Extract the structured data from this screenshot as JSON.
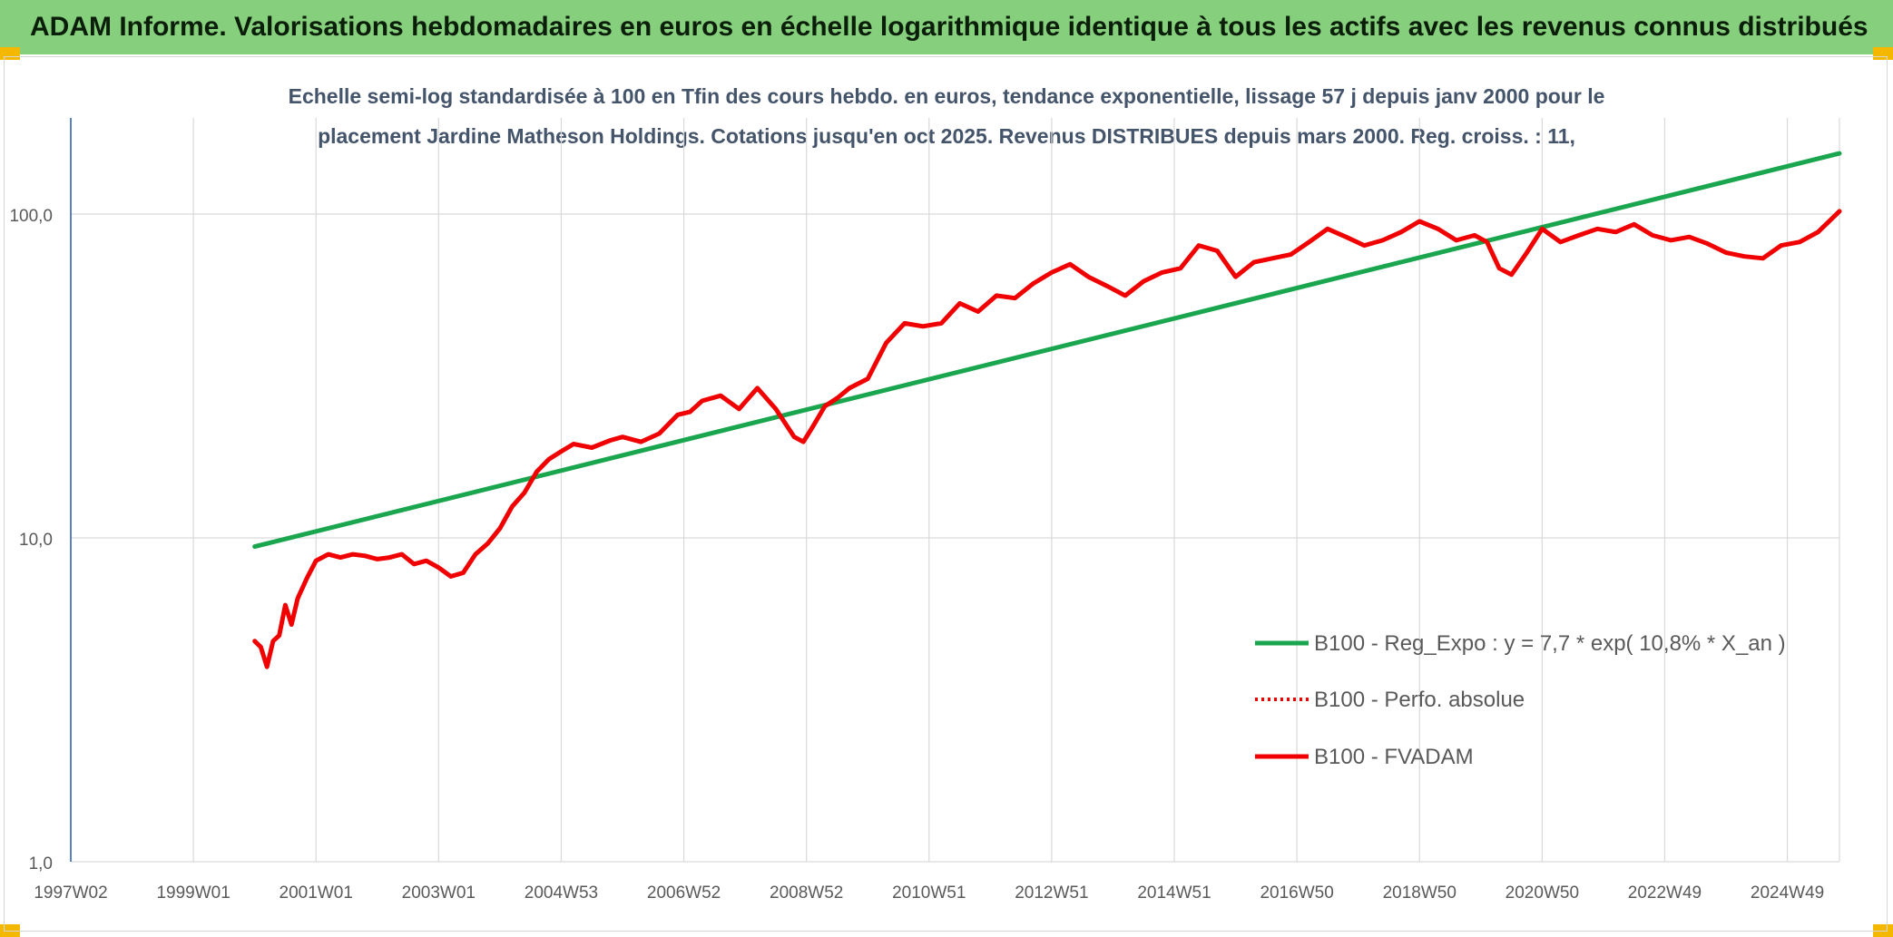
{
  "banner": {
    "text": "ADAM Informe. Valorisations hebdomadaires en euros en échelle logarithmique identique à tous les actifs avec les revenus connus distribués"
  },
  "colors": {
    "banner_bg": "#86cf7c",
    "corner_marker": "#f5b800",
    "regression_line": "#1aa64e",
    "series_line": "#f00000",
    "title_text": "#44546a",
    "axis_text": "#595959",
    "grid": "#d9d9d9",
    "y_axis_line": "#2e64ad"
  },
  "chart_data": {
    "type": "line",
    "title_lines": [
      "Echelle semi-log standardisée à 100 en Tfin des cours hebdo. en euros, tendance exponentielle, lissage 57 j depuis janv 2000 pour le",
      "placement Jardine Matheson Holdings. Cotations jusqu'en oct 2025. Revenus DISTRIBUES depuis mars 2000. Reg. croiss. : 11,"
    ],
    "y_scale": "log",
    "ylim": [
      1,
      100
    ],
    "yticks": [
      1,
      10,
      100
    ],
    "ytick_labels": [
      "1,0",
      "10,0",
      "100,0"
    ],
    "x_range": [
      1997.0,
      2025.85
    ],
    "xticks": [
      {
        "label": "1997W02",
        "x": 1997.0
      },
      {
        "label": "1999W01",
        "x": 1999.0
      },
      {
        "label": "2001W01",
        "x": 2001.0
      },
      {
        "label": "2003W01",
        "x": 2003.0
      },
      {
        "label": "2004W53",
        "x": 2005.0
      },
      {
        "label": "2006W52",
        "x": 2007.0
      },
      {
        "label": "2008W52",
        "x": 2009.0
      },
      {
        "label": "2010W51",
        "x": 2011.0
      },
      {
        "label": "2012W51",
        "x": 2013.0
      },
      {
        "label": "2014W51",
        "x": 2015.0
      },
      {
        "label": "2016W50",
        "x": 2017.0
      },
      {
        "label": "2018W50",
        "x": 2019.0
      },
      {
        "label": "2020W50",
        "x": 2021.0
      },
      {
        "label": "2022W49",
        "x": 2023.0
      },
      {
        "label": "2024W49",
        "x": 2025.0
      }
    ],
    "grid": true,
    "legend_position": "bottom-right",
    "series": [
      {
        "name": "B100 - Reg_Expo : y = 7,7 * exp( 10,8% *  X_an )",
        "style": "solid",
        "color": "#1aa64e",
        "x": [
          2000.0,
          2025.85
        ],
        "y": [
          9.4,
          154
        ]
      },
      {
        "name": "B100 - Perfo. absolue",
        "style": "dotted",
        "color": "#f00000",
        "x": [],
        "y": []
      },
      {
        "name": "B100 - FVADAM",
        "style": "solid",
        "color": "#f00000",
        "x": [
          2000.0,
          2000.1,
          2000.2,
          2000.3,
          2000.4,
          2000.5,
          2000.6,
          2000.7,
          2000.85,
          2001.0,
          2001.2,
          2001.4,
          2001.6,
          2001.8,
          2002.0,
          2002.2,
          2002.4,
          2002.6,
          2002.8,
          2003.0,
          2003.2,
          2003.4,
          2003.6,
          2003.8,
          2004.0,
          2004.2,
          2004.4,
          2004.6,
          2004.8,
          2005.0,
          2005.2,
          2005.5,
          2005.8,
          2006.0,
          2006.3,
          2006.6,
          2006.9,
          2007.1,
          2007.3,
          2007.6,
          2007.9,
          2008.2,
          2008.5,
          2008.8,
          2008.95,
          2009.1,
          2009.3,
          2009.5,
          2009.7,
          2010.0,
          2010.3,
          2010.6,
          2010.9,
          2011.2,
          2011.5,
          2011.8,
          2012.1,
          2012.4,
          2012.7,
          2013.0,
          2013.3,
          2013.6,
          2013.9,
          2014.2,
          2014.5,
          2014.8,
          2015.1,
          2015.4,
          2015.7,
          2016.0,
          2016.3,
          2016.6,
          2016.9,
          2017.2,
          2017.5,
          2017.8,
          2018.1,
          2018.4,
          2018.7,
          2019.0,
          2019.3,
          2019.6,
          2019.9,
          2020.1,
          2020.3,
          2020.5,
          2020.75,
          2021.0,
          2021.3,
          2021.6,
          2021.9,
          2022.2,
          2022.5,
          2022.8,
          2023.1,
          2023.4,
          2023.7,
          2024.0,
          2024.3,
          2024.6,
          2024.9,
          2025.2,
          2025.5,
          2025.85
        ],
        "y": [
          4.8,
          4.6,
          4.0,
          4.8,
          5.0,
          6.2,
          5.4,
          6.5,
          7.5,
          8.5,
          8.9,
          8.7,
          8.9,
          8.8,
          8.6,
          8.7,
          8.9,
          8.3,
          8.5,
          8.1,
          7.6,
          7.8,
          8.9,
          9.6,
          10.7,
          12.5,
          13.8,
          16.0,
          17.5,
          18.5,
          19.5,
          19.0,
          20.0,
          20.5,
          19.8,
          21.0,
          24.0,
          24.5,
          26.5,
          27.5,
          25.0,
          29.0,
          25.0,
          20.5,
          19.8,
          22.0,
          25.5,
          27.0,
          29.0,
          31.0,
          40.0,
          46.0,
          45.0,
          46.0,
          53.0,
          50.0,
          56.0,
          55.0,
          61.0,
          66.0,
          70.0,
          64.0,
          60.0,
          56.0,
          62.0,
          66.0,
          68.0,
          80.0,
          77.0,
          64.0,
          71.0,
          73.0,
          75.0,
          82.0,
          90.0,
          85.0,
          80.0,
          83.0,
          88.0,
          95.0,
          90.0,
          83.0,
          86.0,
          82.0,
          68.0,
          65.0,
          76.0,
          90.0,
          82.0,
          86.0,
          90.0,
          88.0,
          93.0,
          86.0,
          83.0,
          85.0,
          81.0,
          76.0,
          74.0,
          73.0,
          80.0,
          82.0,
          88.0,
          102.0
        ]
      }
    ]
  }
}
